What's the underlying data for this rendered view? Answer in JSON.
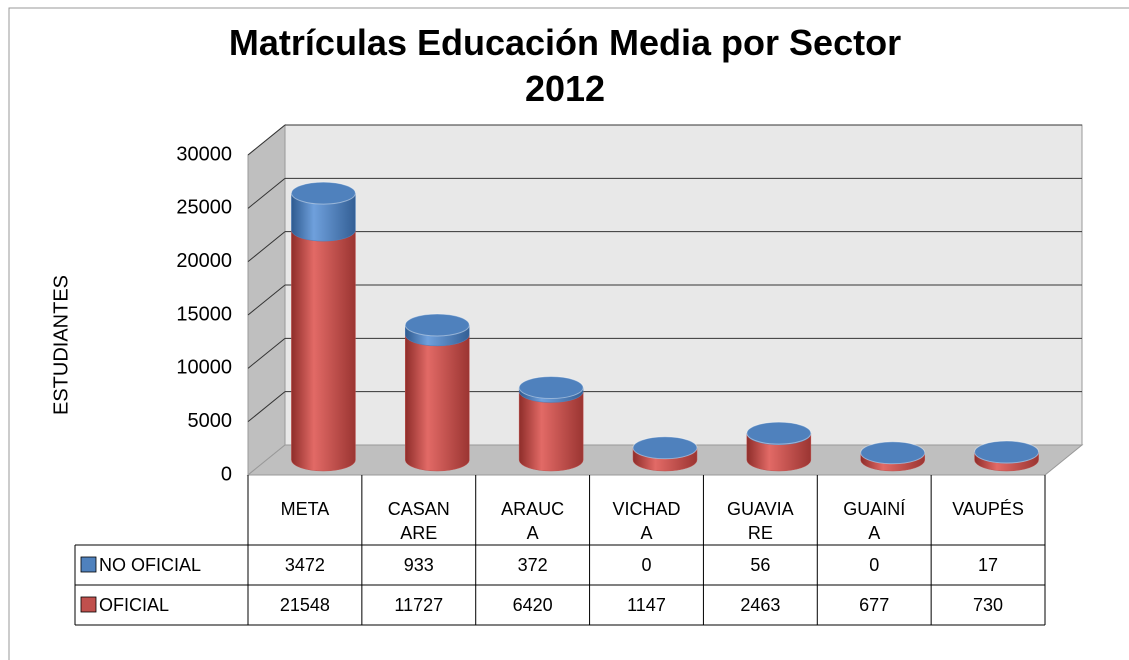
{
  "chart_data": {
    "type": "bar3d",
    "title": "Matrículas Educación Media por Sector 2012",
    "ylabel": "ESTUDIANTES",
    "categories": [
      "META",
      "CASANARE",
      "ARAUCA",
      "VICHADA",
      "GUAVIARE",
      "GUAINÍA",
      "VAUPÉS"
    ],
    "series": [
      {
        "name": "OFICIAL",
        "color": "#c0504d",
        "values": [
          21548,
          11727,
          6420,
          1147,
          2463,
          677,
          730
        ]
      },
      {
        "name": "NO OFICIAL",
        "color": "#4f81bd",
        "values": [
          3472,
          933,
          372,
          0,
          56,
          0,
          17
        ]
      }
    ],
    "ylim": [
      0,
      30000
    ],
    "yticks": [
      0,
      5000,
      10000,
      15000,
      20000,
      25000,
      30000
    ],
    "grid": true,
    "stacked": true,
    "legend": "table"
  }
}
